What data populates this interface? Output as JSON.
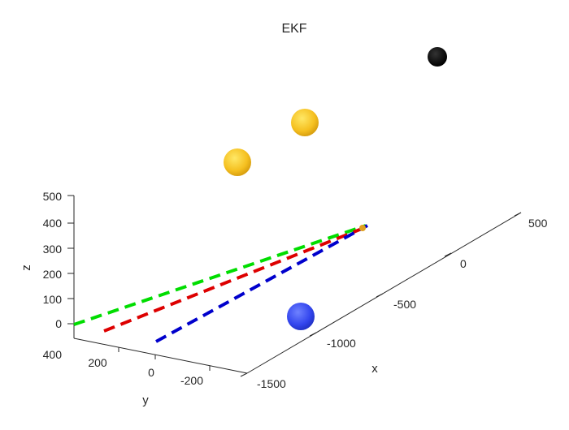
{
  "chart_data": {
    "type": "line",
    "title": "EKF",
    "xlabel": "x",
    "ylabel": "y",
    "zlabel": "z",
    "xticks": [
      "0",
      "-500",
      "-1000",
      "-1500"
    ],
    "yticks": [
      "200",
      "0",
      "-200"
    ],
    "zticks": [
      "0",
      "100",
      "200",
      "300",
      "400",
      "500"
    ],
    "extra_ticks": [
      "500",
      "400"
    ],
    "series": [
      {
        "color": "#00dd00",
        "style": "dashed",
        "x": [
          -1500,
          20
        ],
        "y": [
          400,
          400
        ],
        "z": [
          0,
          380
        ]
      },
      {
        "color": "#dd0000",
        "style": "dashed",
        "x": [
          -1500,
          20
        ],
        "y": [
          200,
          300
        ],
        "z": [
          0,
          380
        ]
      },
      {
        "color": "#0000cc",
        "style": "dashed",
        "x": [
          -1500,
          20
        ],
        "y": [
          -100,
          200
        ],
        "z": [
          0,
          380
        ]
      }
    ],
    "markers": [
      {
        "color": "#000000",
        "shape": "sphere"
      },
      {
        "color": "#f5c518",
        "shape": "sphere"
      },
      {
        "color": "#f5c518",
        "shape": "sphere"
      },
      {
        "color": "#3a4df5",
        "shape": "sphere"
      }
    ],
    "grid": false
  }
}
